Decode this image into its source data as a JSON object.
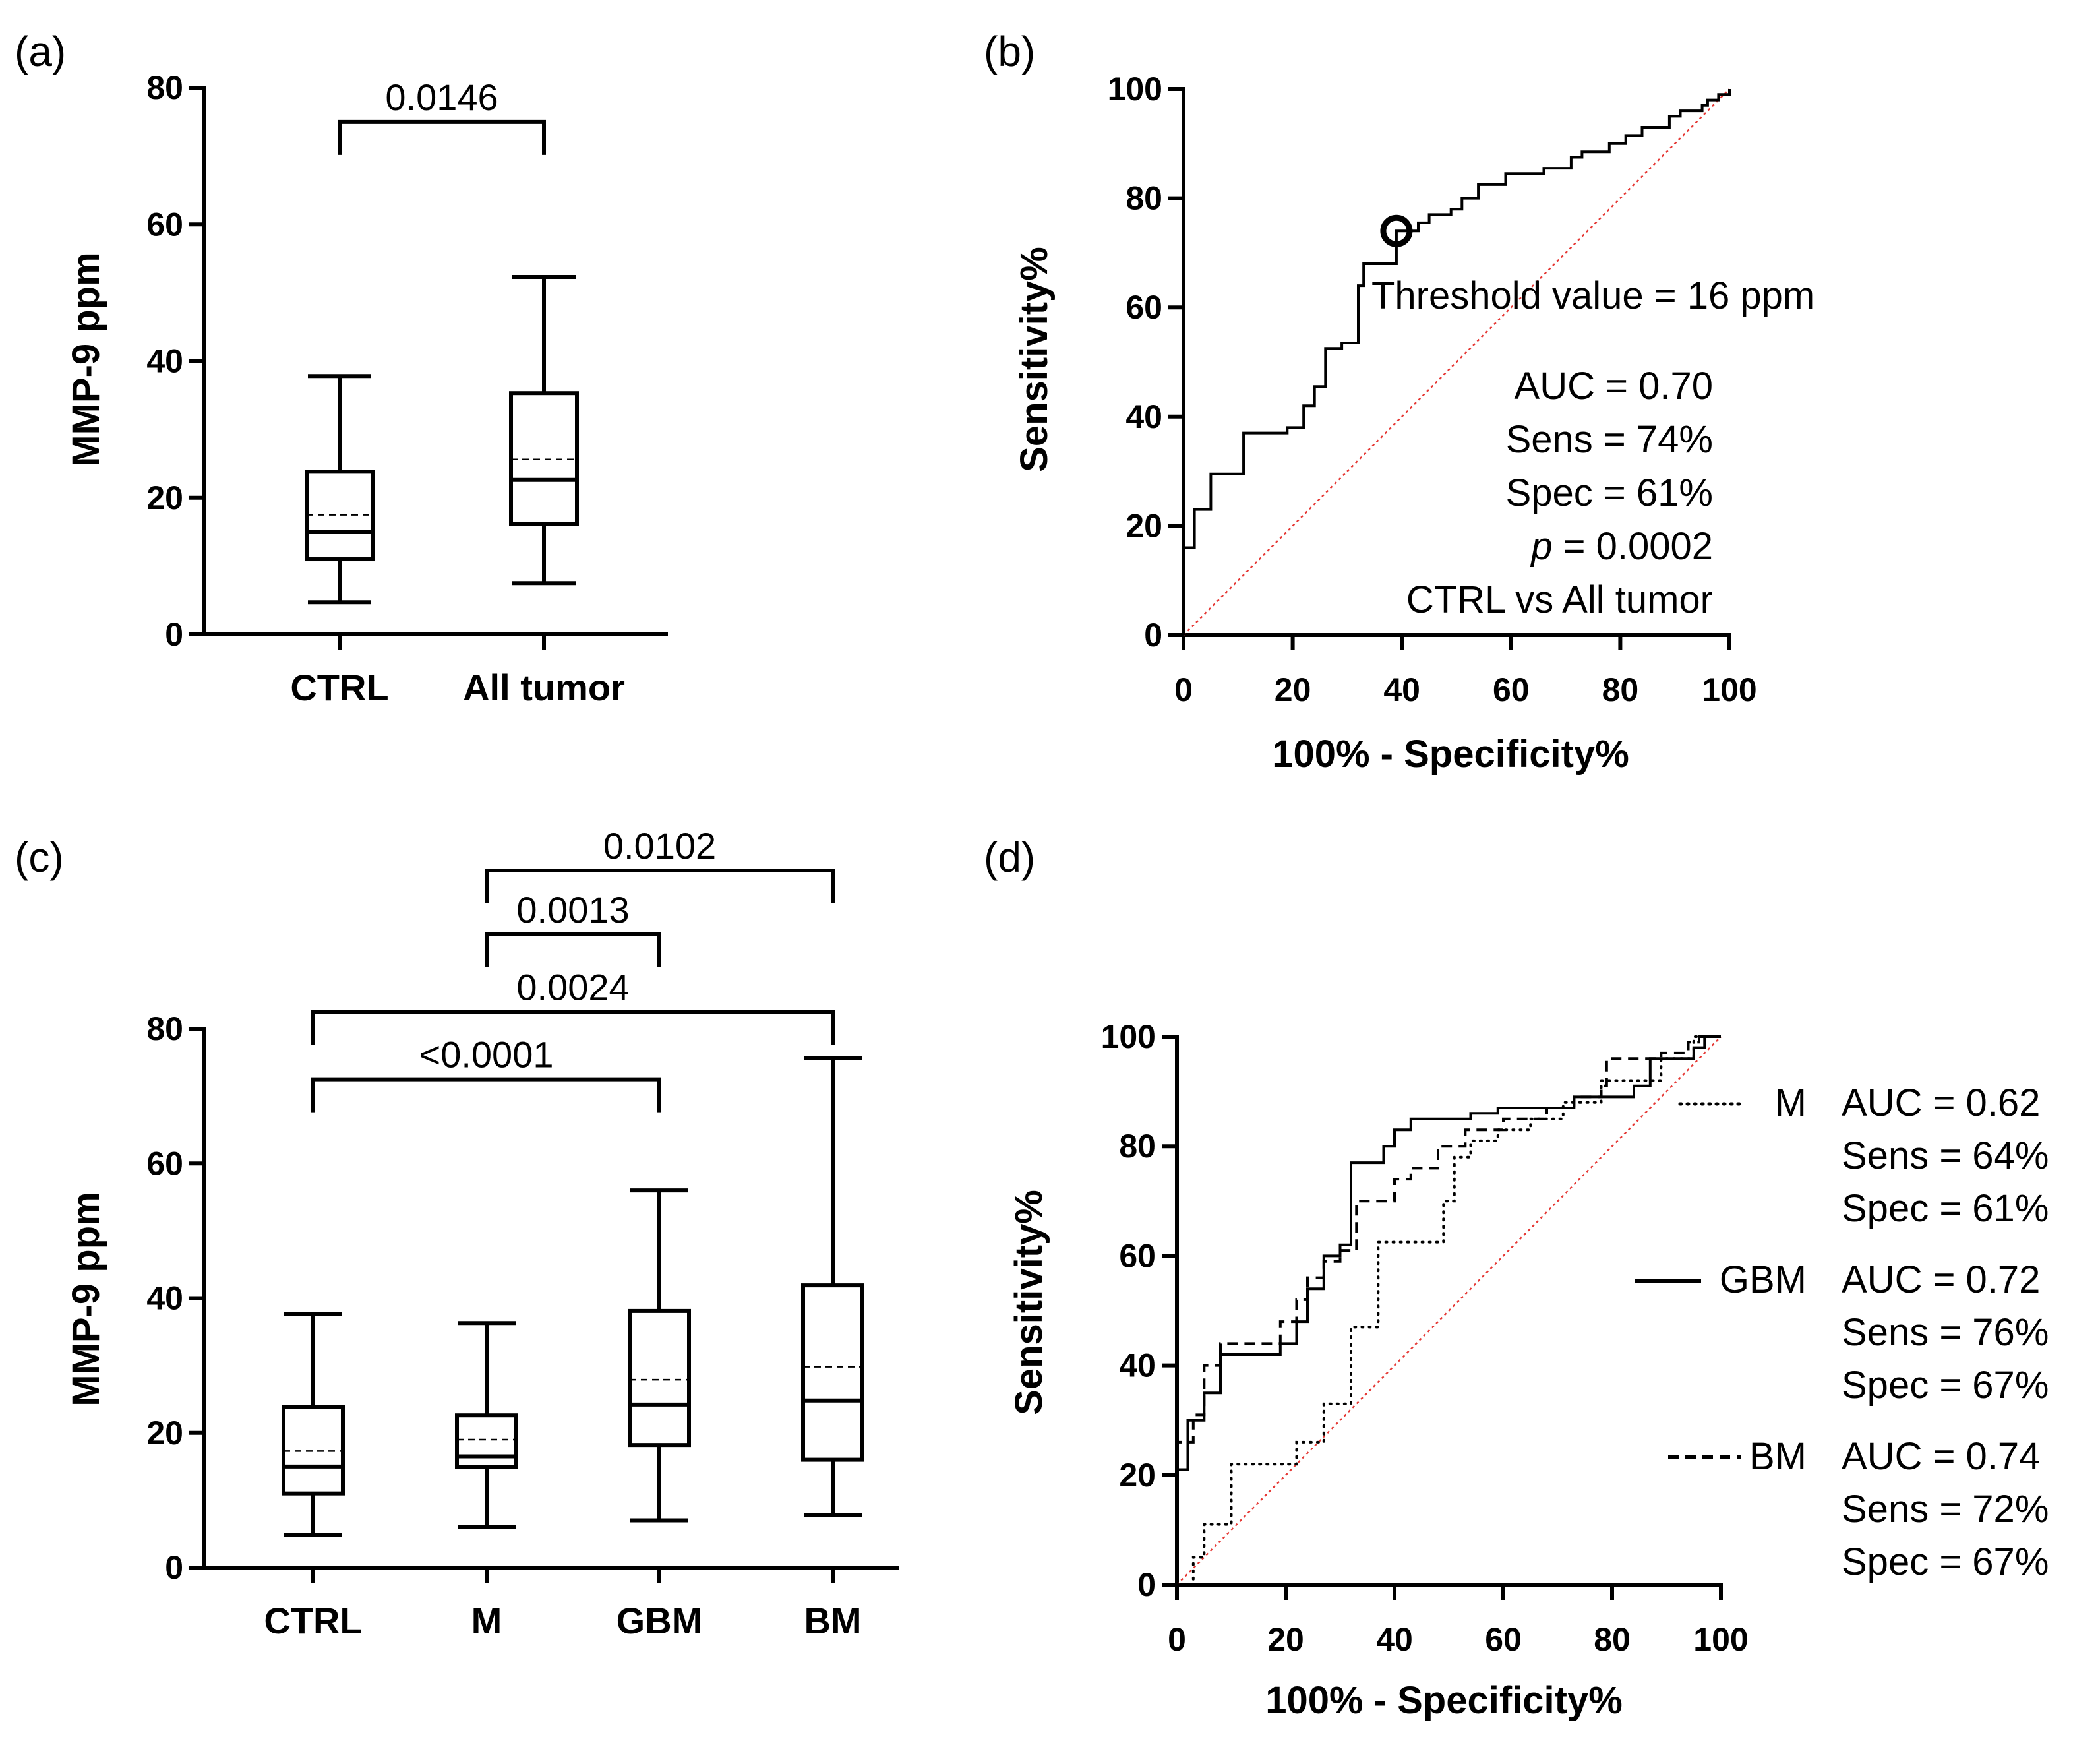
{
  "chart_data": [
    {
      "id": "a",
      "panel_label": "(a)",
      "type": "box",
      "ylabel": "MMP-9 ppm",
      "ylim": [
        0,
        80
      ],
      "yticks": [
        "0",
        "20",
        "40",
        "60",
        "80"
      ],
      "categories": [
        "CTRL",
        "All tumor"
      ],
      "boxes": [
        {
          "name": "CTRL",
          "min": 4.7,
          "q1": 11,
          "median": 15,
          "mean": 17.5,
          "q3": 23.8,
          "max": 37.8
        },
        {
          "name": "All tumor",
          "min": 7.5,
          "q1": 16.2,
          "median": 22.6,
          "mean": 25.6,
          "q3": 35.3,
          "max": 52.3
        }
      ],
      "comparisons": [
        {
          "from": 0,
          "to": 1,
          "label": "0.0146",
          "y": 75
        }
      ]
    },
    {
      "id": "b",
      "panel_label": "(b)",
      "type": "line",
      "xlabel": "100% - Specificity%",
      "ylabel": "Sensitivity%",
      "xlim": [
        0,
        100
      ],
      "ylim": [
        0,
        100
      ],
      "xticks": [
        "0",
        "20",
        "40",
        "60",
        "80",
        "100"
      ],
      "yticks": [
        "0",
        "20",
        "40",
        "60",
        "80",
        "100"
      ],
      "series": [
        {
          "style": "solid",
          "points": [
            [
              0,
              0
            ],
            [
              0,
              16
            ],
            [
              2,
              16
            ],
            [
              2,
              23
            ],
            [
              5,
              23
            ],
            [
              5,
              29.5
            ],
            [
              11,
              29.5
            ],
            [
              11,
              37
            ],
            [
              19,
              37
            ],
            [
              19,
              38
            ],
            [
              22,
              38
            ],
            [
              22,
              42
            ],
            [
              24,
              42
            ],
            [
              24,
              45.5
            ],
            [
              26,
              45.5
            ],
            [
              26,
              52.5
            ],
            [
              29,
              52.5
            ],
            [
              29,
              53.5
            ],
            [
              32,
              53.5
            ],
            [
              32,
              64
            ],
            [
              33,
              64
            ],
            [
              33,
              68
            ],
            [
              39,
              68
            ],
            [
              39,
              74
            ],
            [
              43,
              74
            ],
            [
              43,
              75.5
            ],
            [
              45,
              75.5
            ],
            [
              45,
              77
            ],
            [
              49,
              77
            ],
            [
              49,
              78
            ],
            [
              51,
              78
            ],
            [
              51,
              80
            ],
            [
              54,
              80
            ],
            [
              54,
              82.5
            ],
            [
              59,
              82.5
            ],
            [
              59,
              84.5
            ],
            [
              66,
              84.5
            ],
            [
              66,
              85.5
            ],
            [
              71,
              85.5
            ],
            [
              71,
              87.5
            ],
            [
              73,
              87.5
            ],
            [
              73,
              88.5
            ],
            [
              78,
              88.5
            ],
            [
              78,
              90
            ],
            [
              81,
              90
            ],
            [
              81,
              91.5
            ],
            [
              84,
              91.5
            ],
            [
              84,
              93
            ],
            [
              89,
              93
            ],
            [
              89,
              95
            ],
            [
              91,
              95
            ],
            [
              91,
              96
            ],
            [
              95,
              96
            ],
            [
              95,
              97
            ],
            [
              96,
              97
            ],
            [
              96,
              98
            ],
            [
              98,
              98
            ],
            [
              98,
              99
            ],
            [
              100,
              99
            ],
            [
              100,
              100
            ]
          ]
        }
      ],
      "threshold_point": [
        39,
        74
      ],
      "annotations": {
        "threshold": "Threshold value = 16 ppm",
        "auc": "AUC = 0.70",
        "sens": "Sens = 74%",
        "spec": "Spec = 61%",
        "p_italic": "p",
        "p_rest": " = 0.0002",
        "comparison": "CTRL vs All tumor"
      }
    },
    {
      "id": "c",
      "panel_label": "(c)",
      "type": "box",
      "ylabel": "MMP-9 ppm",
      "ylim": [
        0,
        80
      ],
      "yticks": [
        "0",
        "20",
        "40",
        "60",
        "80"
      ],
      "categories": [
        "CTRL",
        "M",
        "GBM",
        "BM"
      ],
      "boxes": [
        {
          "name": "CTRL",
          "min": 4.8,
          "q1": 11,
          "median": 15,
          "mean": 17.3,
          "q3": 23.8,
          "max": 37.6
        },
        {
          "name": "M",
          "min": 6,
          "q1": 14.9,
          "median": 16.5,
          "mean": 19,
          "q3": 22.6,
          "max": 36.3
        },
        {
          "name": "GBM",
          "min": 7,
          "q1": 18.2,
          "median": 24.2,
          "mean": 27.9,
          "q3": 38.1,
          "max": 56
        },
        {
          "name": "BM",
          "min": 7.8,
          "q1": 16,
          "median": 24.8,
          "mean": 29.8,
          "q3": 41.9,
          "max": 75.6
        }
      ],
      "comparisons": [
        {
          "from": 0,
          "to": 2,
          "label": "<0.0001",
          "y": 72.5
        },
        {
          "from": 0,
          "to": 3,
          "label": "0.0024",
          "y": 82.5
        },
        {
          "from": 1,
          "to": 2,
          "label": "0.0013",
          "y": 94
        },
        {
          "from": 1,
          "to": 3,
          "label": "0.0102",
          "y": 103.5
        }
      ]
    },
    {
      "id": "d",
      "panel_label": "(d)",
      "type": "line",
      "xlabel": "100% - Specificity%",
      "ylabel": "Sensitivity%",
      "xlim": [
        0,
        100
      ],
      "ylim": [
        0,
        100
      ],
      "xticks": [
        "0",
        "20",
        "40",
        "60",
        "80",
        "100"
      ],
      "yticks": [
        "0",
        "20",
        "40",
        "60",
        "80",
        "100"
      ],
      "series": [
        {
          "name": "M",
          "style": "dotted",
          "points": [
            [
              0,
              0
            ],
            [
              3,
              0
            ],
            [
              3,
              5
            ],
            [
              5,
              5
            ],
            [
              5,
              11
            ],
            [
              10,
              11
            ],
            [
              10,
              22
            ],
            [
              22,
              22
            ],
            [
              22,
              26
            ],
            [
              27,
              26
            ],
            [
              27,
              33
            ],
            [
              32,
              33
            ],
            [
              32,
              47
            ],
            [
              37,
              47
            ],
            [
              37,
              62.5
            ],
            [
              49,
              62.5
            ],
            [
              49,
              70
            ],
            [
              51,
              70
            ],
            [
              51,
              78
            ],
            [
              54,
              78
            ],
            [
              54,
              81
            ],
            [
              59,
              81
            ],
            [
              59,
              83
            ],
            [
              65,
              83
            ],
            [
              65,
              85
            ],
            [
              71,
              85
            ],
            [
              71,
              88
            ],
            [
              78,
              88
            ],
            [
              78,
              92
            ],
            [
              89,
              92
            ],
            [
              89,
              96
            ],
            [
              95,
              96
            ],
            [
              95,
              100
            ],
            [
              100,
              100
            ]
          ]
        },
        {
          "name": "GBM",
          "style": "solid",
          "points": [
            [
              0,
              0
            ],
            [
              0,
              21
            ],
            [
              2,
              21
            ],
            [
              2,
              30
            ],
            [
              5,
              30
            ],
            [
              5,
              35
            ],
            [
              8,
              35
            ],
            [
              8,
              42
            ],
            [
              19,
              42
            ],
            [
              19,
              44
            ],
            [
              22,
              44
            ],
            [
              22,
              48
            ],
            [
              24,
              48
            ],
            [
              24,
              54
            ],
            [
              27,
              54
            ],
            [
              27,
              60
            ],
            [
              30,
              60
            ],
            [
              30,
              62
            ],
            [
              32,
              62
            ],
            [
              32,
              77
            ],
            [
              38,
              77
            ],
            [
              38,
              80
            ],
            [
              40,
              80
            ],
            [
              40,
              83
            ],
            [
              43,
              83
            ],
            [
              43,
              85
            ],
            [
              54,
              85
            ],
            [
              54,
              86
            ],
            [
              59,
              86
            ],
            [
              59,
              87
            ],
            [
              73,
              87
            ],
            [
              73,
              89
            ],
            [
              84,
              89
            ],
            [
              84,
              91
            ],
            [
              87,
              91
            ],
            [
              87,
              96
            ],
            [
              95,
              96
            ],
            [
              95,
              98
            ],
            [
              97,
              98
            ],
            [
              97,
              100
            ],
            [
              100,
              100
            ]
          ]
        },
        {
          "name": "BM",
          "style": "dashed",
          "points": [
            [
              0,
              0
            ],
            [
              0,
              26
            ],
            [
              3,
              26
            ],
            [
              3,
              31
            ],
            [
              5,
              31
            ],
            [
              5,
              40
            ],
            [
              8,
              40
            ],
            [
              8,
              44
            ],
            [
              19,
              44
            ],
            [
              19,
              48
            ],
            [
              22,
              48
            ],
            [
              22,
              52
            ],
            [
              24,
              52
            ],
            [
              24,
              56
            ],
            [
              27,
              56
            ],
            [
              27,
              59
            ],
            [
              30,
              59
            ],
            [
              30,
              61
            ],
            [
              33,
              61
            ],
            [
              33,
              70
            ],
            [
              40,
              70
            ],
            [
              40,
              74
            ],
            [
              43,
              74
            ],
            [
              43,
              76
            ],
            [
              48,
              76
            ],
            [
              48,
              80
            ],
            [
              53,
              80
            ],
            [
              53,
              83
            ],
            [
              60,
              83
            ],
            [
              60,
              85
            ],
            [
              68,
              85
            ],
            [
              68,
              87
            ],
            [
              73,
              87
            ],
            [
              73,
              89
            ],
            [
              78,
              89
            ],
            [
              78,
              91
            ],
            [
              79,
              91
            ],
            [
              79,
              96
            ],
            [
              89,
              96
            ],
            [
              89,
              97
            ],
            [
              94,
              97
            ],
            [
              94,
              99
            ],
            [
              96,
              99
            ],
            [
              96,
              100
            ],
            [
              100,
              100
            ]
          ]
        }
      ],
      "legend": [
        {
          "name": "M",
          "auc": "AUC = 0.62",
          "sens": "Sens = 64%",
          "spec": "Spec = 61%"
        },
        {
          "name": "GBM",
          "auc": "AUC = 0.72",
          "sens": "Sens = 76%",
          "spec": "Spec = 67%"
        },
        {
          "name": "BM",
          "auc": "AUC = 0.74",
          "sens": "Sens = 72%",
          "spec": "Spec = 67%"
        }
      ]
    }
  ]
}
